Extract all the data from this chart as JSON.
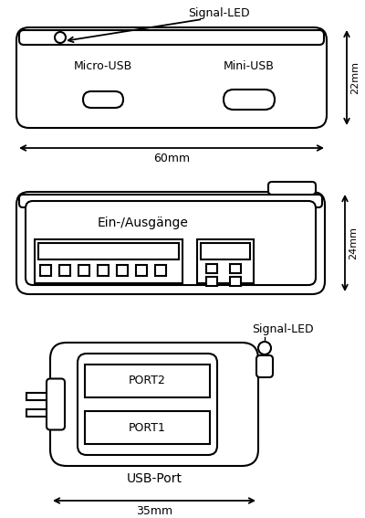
{
  "bg_color": "#ffffff",
  "line_color": "#000000",
  "fig_width": 4.0,
  "fig_height": 5.67,
  "diagram1": {
    "label_signal_led": "Signal-LED",
    "label_micro_usb": "Micro-USB",
    "label_mini_usb": "Mini-USB",
    "dim_width": "60mm",
    "dim_height": "22mm"
  },
  "diagram2": {
    "label_ports": "Ein-/Ausgänge",
    "dim_height": "24mm"
  },
  "diagram3": {
    "label_signal_led": "Signal-LED",
    "label_port2": "PORT2",
    "label_port1": "PORT1",
    "label_usb": "USB-Port",
    "dim_width": "35mm"
  }
}
